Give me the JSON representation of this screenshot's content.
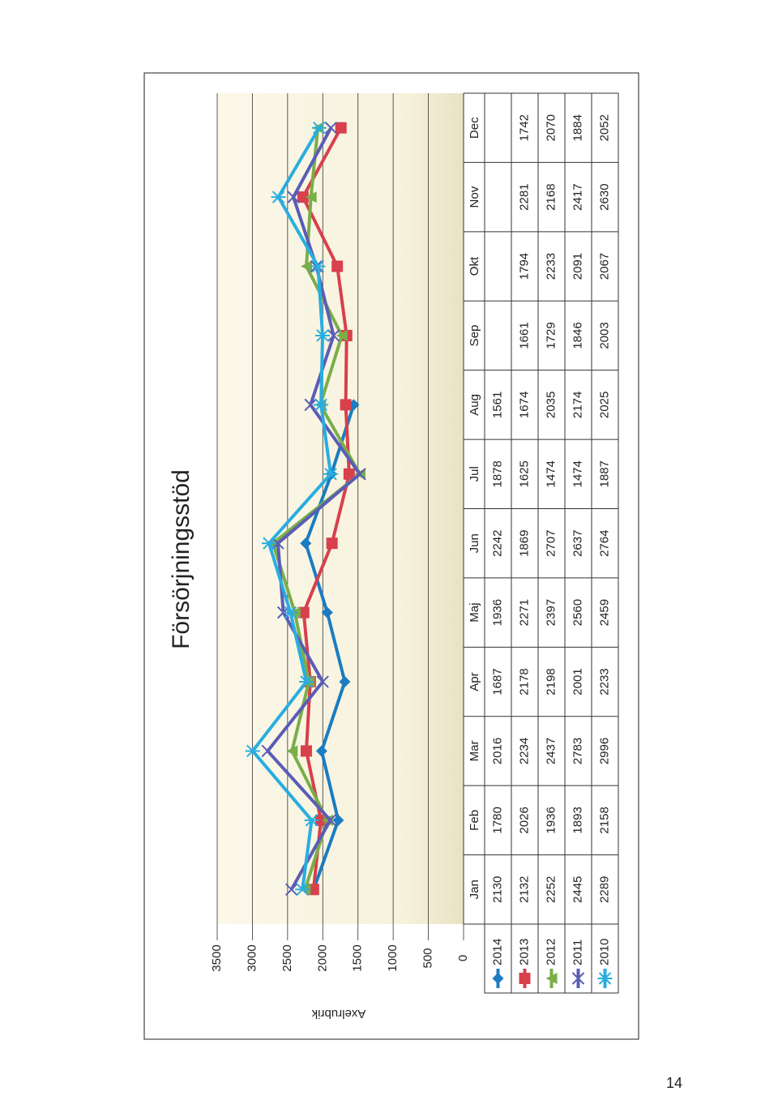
{
  "chart_data": {
    "type": "line",
    "title": "Försörjningsstöd",
    "y_label": "Axelrubrik",
    "categories": [
      "Jan",
      "Feb",
      "Mar",
      "Apr",
      "Maj",
      "Jun",
      "Jul",
      "Aug",
      "Sep",
      "Okt",
      "Nov",
      "Dec"
    ],
    "series": [
      {
        "name": "2014",
        "color": "#1b7cc2",
        "marker": "diamond",
        "values": [
          2130,
          1780,
          2016,
          1687,
          1936,
          2242,
          1878,
          1561,
          null,
          null,
          null,
          null
        ]
      },
      {
        "name": "2013",
        "color": "#d7404c",
        "marker": "square",
        "values": [
          2132,
          2026,
          2234,
          2178,
          2271,
          1869,
          1625,
          1674,
          1661,
          1794,
          2281,
          1742
        ]
      },
      {
        "name": "2012",
        "color": "#7aae48",
        "marker": "triangle",
        "values": [
          2252,
          1936,
          2437,
          2198,
          2397,
          2707,
          1474,
          2035,
          1729,
          2233,
          2168,
          2070
        ]
      },
      {
        "name": "2011",
        "color": "#5a5db5",
        "marker": "x",
        "values": [
          2445,
          1893,
          2783,
          2001,
          2560,
          2637,
          1474,
          2174,
          1846,
          2091,
          2417,
          1884
        ]
      },
      {
        "name": "2010",
        "color": "#29ade0",
        "marker": "star",
        "values": [
          2289,
          2158,
          2996,
          2233,
          2459,
          2764,
          1887,
          2025,
          2003,
          2067,
          2630,
          2052
        ]
      }
    ],
    "ylim": [
      0,
      3500
    ],
    "yticks": [
      0,
      500,
      1000,
      1500,
      2000,
      2500,
      3000,
      3500
    ],
    "grid": true,
    "data_table": true
  },
  "page_number": "14"
}
